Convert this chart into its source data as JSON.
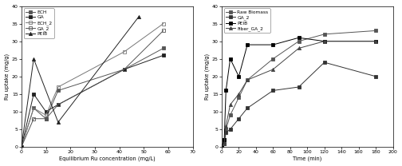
{
  "left": {
    "xlabel": "Equilibrium Ru concentration (mg/L)",
    "ylabel": "Ru uptake (mg/g)",
    "xlim": [
      0,
      70
    ],
    "ylim": [
      0,
      40
    ],
    "xticks": [
      0,
      10,
      20,
      30,
      40,
      50,
      60,
      70
    ],
    "yticks": [
      0,
      5,
      10,
      15,
      20,
      25,
      30,
      35,
      40
    ],
    "series": [
      {
        "label": "ECH",
        "marker": "s",
        "fillstyle": "full",
        "color": "#555555",
        "x": [
          0,
          1,
          5,
          10,
          15,
          42,
          58
        ],
        "y": [
          0,
          0,
          11,
          8,
          16,
          22,
          28
        ]
      },
      {
        "label": "GA",
        "marker": "s",
        "fillstyle": "full",
        "color": "#222222",
        "x": [
          0,
          1,
          5,
          10,
          15,
          42,
          58
        ],
        "y": [
          0,
          0,
          15,
          10,
          12,
          22,
          26
        ]
      },
      {
        "label": "ECH_2",
        "marker": "s",
        "fillstyle": "none",
        "color": "#888888",
        "x": [
          0,
          1,
          5,
          10,
          15,
          42,
          58
        ],
        "y": [
          0,
          0,
          11,
          9,
          17,
          27,
          35
        ]
      },
      {
        "label": "GA_2",
        "marker": "s",
        "fillstyle": "none",
        "color": "#555555",
        "x": [
          0,
          1,
          5,
          10,
          15,
          42,
          58
        ],
        "y": [
          0,
          0,
          8,
          8,
          12,
          22,
          33
        ]
      },
      {
        "label": "PEIB",
        "marker": "^",
        "fillstyle": "full",
        "color": "#222222",
        "x": [
          0,
          1,
          5,
          10,
          15,
          48
        ],
        "y": [
          0,
          0,
          25,
          8,
          7,
          37
        ]
      }
    ]
  },
  "right": {
    "xlabel": "Time (min)",
    "ylabel": "Ru uptake (mg/g)",
    "xlim": [
      0,
      200
    ],
    "ylim": [
      0,
      40
    ],
    "xticks": [
      0,
      20,
      40,
      60,
      80,
      100,
      120,
      140,
      160,
      180,
      200
    ],
    "yticks": [
      0,
      5,
      10,
      15,
      20,
      25,
      30,
      35,
      40
    ],
    "series": [
      {
        "label": "Raw Biomass",
        "marker": "s",
        "fillstyle": "full",
        "color": "#555555",
        "x": [
          0,
          3,
          5,
          10,
          20,
          30,
          60,
          90,
          120,
          180
        ],
        "y": [
          0,
          0,
          5,
          9,
          14,
          19,
          25,
          30,
          32,
          33
        ]
      },
      {
        "label": "GA_2",
        "marker": "s",
        "fillstyle": "full",
        "color": "#333333",
        "x": [
          0,
          3,
          5,
          10,
          20,
          30,
          60,
          90,
          120,
          180
        ],
        "y": [
          0,
          0,
          4,
          5,
          8,
          11,
          16,
          17,
          24,
          20
        ]
      },
      {
        "label": "PEIB",
        "marker": "s",
        "fillstyle": "full",
        "color": "#000000",
        "x": [
          0,
          3,
          5,
          10,
          20,
          30,
          60,
          90,
          120,
          180
        ],
        "y": [
          0,
          0,
          16,
          25,
          20,
          29,
          29,
          31,
          30,
          30
        ]
      },
      {
        "label": "Fiber_GA_2",
        "marker": "^",
        "fillstyle": "full",
        "color": "#444444",
        "x": [
          0,
          3,
          5,
          10,
          20,
          30,
          60,
          90,
          120,
          180
        ],
        "y": [
          0,
          0,
          6,
          12,
          15,
          19,
          22,
          28,
          30,
          30
        ]
      }
    ]
  }
}
